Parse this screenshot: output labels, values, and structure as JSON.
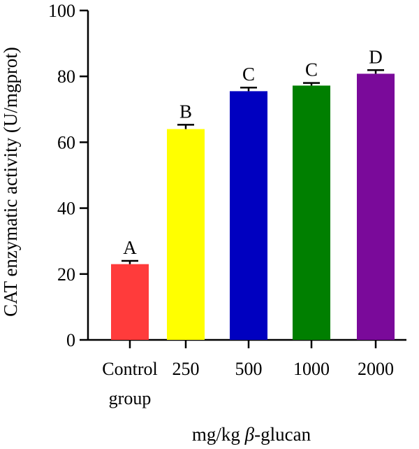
{
  "chart_data": {
    "type": "bar",
    "title": "",
    "ylabel": "CAT enzymatic activity (U/mgprot)",
    "xlabel_prefix": "mg/kg ",
    "xlabel_symbol": "β",
    "xlabel_suffix": "-glucan",
    "ylim": [
      0,
      100
    ],
    "yticks": [
      0,
      20,
      40,
      60,
      80,
      100
    ],
    "grid": false,
    "legend": "none",
    "categories": [
      {
        "line1": "Control",
        "line2": "group"
      },
      {
        "line1": "250",
        "line2": ""
      },
      {
        "line1": "500",
        "line2": ""
      },
      {
        "line1": "1000",
        "line2": ""
      },
      {
        "line1": "2000",
        "line2": ""
      }
    ],
    "values": [
      23,
      64,
      75.5,
      77.2,
      80.8
    ],
    "errors": [
      1.0,
      1.3,
      1.1,
      0.8,
      1.1
    ],
    "significance": [
      "A",
      "B",
      "C",
      "C",
      "D"
    ],
    "colors": [
      "#ff3b3b",
      "#ffff00",
      "#0000c0",
      "#007f00",
      "#7a0a9a"
    ]
  }
}
